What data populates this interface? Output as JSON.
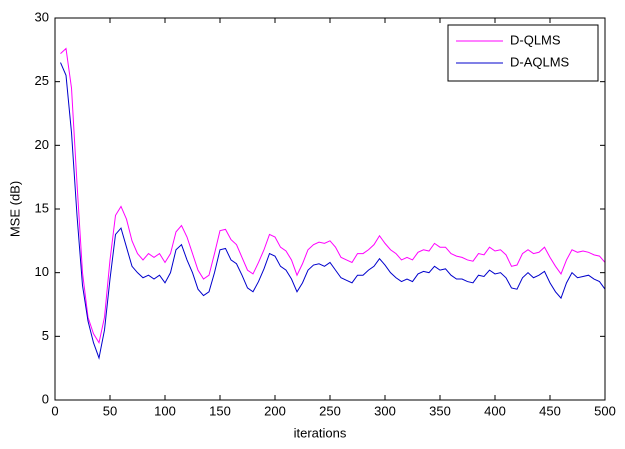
{
  "chart_data": {
    "type": "line",
    "x_label": "iterations",
    "y_label": "MSE (dB)",
    "x": [
      5,
      10,
      15,
      20,
      25,
      30,
      35,
      40,
      45,
      50,
      55,
      60,
      65,
      70,
      75,
      80,
      85,
      90,
      95,
      100,
      105,
      110,
      115,
      120,
      125,
      130,
      135,
      140,
      145,
      150,
      155,
      160,
      165,
      170,
      175,
      180,
      185,
      190,
      195,
      200,
      205,
      210,
      215,
      220,
      225,
      230,
      235,
      240,
      245,
      250,
      255,
      260,
      265,
      270,
      275,
      280,
      285,
      290,
      295,
      300,
      305,
      310,
      315,
      320,
      325,
      330,
      335,
      340,
      345,
      350,
      355,
      360,
      365,
      370,
      375,
      380,
      385,
      390,
      395,
      400,
      405,
      410,
      415,
      420,
      425,
      430,
      435,
      440,
      445,
      450,
      455,
      460,
      465,
      470,
      475,
      480,
      485,
      490,
      495,
      500
    ],
    "series": [
      {
        "name": "D-QLMS",
        "color": "#ff00ff",
        "values": [
          27.2,
          27.6,
          24.5,
          17,
          10,
          6.5,
          5.2,
          4.5,
          6.5,
          11,
          14.5,
          15.2,
          14.2,
          12.5,
          11.5,
          11.0,
          11.5,
          11.2,
          11.5,
          10.8,
          11.5,
          13.2,
          13.7,
          12.8,
          11.5,
          10.2,
          9.5,
          9.8,
          11.5,
          13.3,
          13.4,
          12.6,
          12.2,
          11.2,
          10.2,
          9.9,
          10.8,
          11.8,
          13.0,
          12.8,
          12.0,
          11.7,
          11.0,
          9.8,
          10.7,
          11.8,
          12.2,
          12.4,
          12.3,
          12.5,
          12.0,
          11.2,
          11.0,
          10.8,
          11.5,
          11.5,
          11.8,
          12.2,
          12.9,
          12.3,
          11.8,
          11.5,
          11.0,
          11.2,
          11.0,
          11.6,
          11.8,
          11.7,
          12.3,
          12.0,
          12.0,
          11.5,
          11.3,
          11.2,
          11.0,
          10.9,
          11.5,
          11.4,
          12.0,
          11.7,
          11.8,
          11.4,
          10.5,
          10.6,
          11.5,
          11.8,
          11.5,
          11.6,
          12.0,
          11.2,
          10.5,
          9.9,
          11.0,
          11.8,
          11.6,
          11.7,
          11.6,
          11.4,
          11.3,
          10.8
        ]
      },
      {
        "name": "D-AQLMS",
        "color": "#0000cc",
        "values": [
          26.5,
          25.5,
          21,
          14.5,
          9,
          6.2,
          4.5,
          3.3,
          5.5,
          9.5,
          13,
          13.5,
          12,
          10.5,
          10,
          9.6,
          9.8,
          9.5,
          9.8,
          9.2,
          10,
          11.8,
          12.2,
          11.0,
          10.0,
          8.7,
          8.2,
          8.5,
          10,
          11.8,
          11.9,
          11.0,
          10.7,
          9.8,
          8.8,
          8.5,
          9.3,
          10.3,
          11.5,
          11.3,
          10.5,
          10.2,
          9.5,
          8.5,
          9.2,
          10.2,
          10.6,
          10.7,
          10.5,
          10.8,
          10.2,
          9.6,
          9.4,
          9.2,
          9.8,
          9.8,
          10.2,
          10.5,
          11.1,
          10.6,
          10.0,
          9.6,
          9.3,
          9.5,
          9.3,
          9.9,
          10.1,
          10.0,
          10.5,
          10.2,
          10.3,
          9.8,
          9.5,
          9.5,
          9.3,
          9.2,
          9.8,
          9.7,
          10.2,
          9.9,
          10.0,
          9.6,
          8.8,
          8.7,
          9.6,
          10.0,
          9.6,
          9.8,
          10.1,
          9.2,
          8.5,
          8.0,
          9.2,
          10.0,
          9.6,
          9.7,
          9.8,
          9.5,
          9.3,
          8.7
        ]
      }
    ],
    "xlim": [
      0,
      500
    ],
    "xticks": [
      0,
      50,
      100,
      150,
      200,
      250,
      300,
      350,
      400,
      450,
      500
    ],
    "ylim": [
      0,
      30
    ],
    "yticks": [
      0,
      5,
      10,
      15,
      20,
      25,
      30
    ],
    "legend": "upper right"
  }
}
